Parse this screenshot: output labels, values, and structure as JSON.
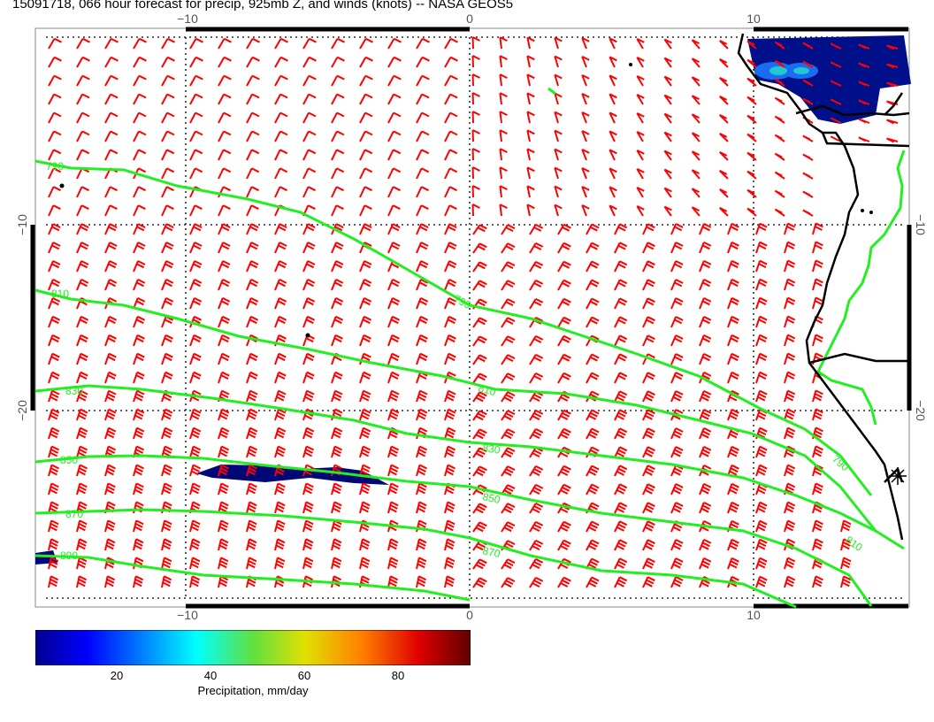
{
  "title": "15091718, 066 hour forecast for precip, 925mb Z, and winds (knots) -- NASA GEOS5",
  "map": {
    "lon_labels_top": [
      "−10",
      "0",
      "10"
    ],
    "lon_labels_bottom": [
      "−10",
      "0",
      "10"
    ],
    "lat_labels_left": [
      "−10",
      "−20"
    ],
    "lat_labels_right": [
      "−10",
      "−20"
    ],
    "contour_labels": [
      "790",
      "810",
      "830",
      "850",
      "870",
      "890"
    ],
    "colors": {
      "wind_barbs": "#ff0000",
      "height_contours": "#22ee22",
      "coastline": "#000000",
      "precip_low": "#000080"
    }
  },
  "colorbar": {
    "tick_labels": [
      "20",
      "40",
      "60",
      "80"
    ],
    "tick_values": [
      20,
      40,
      60,
      80
    ],
    "range": [
      2,
      95
    ],
    "label": "Precipitation, mm/day"
  }
}
